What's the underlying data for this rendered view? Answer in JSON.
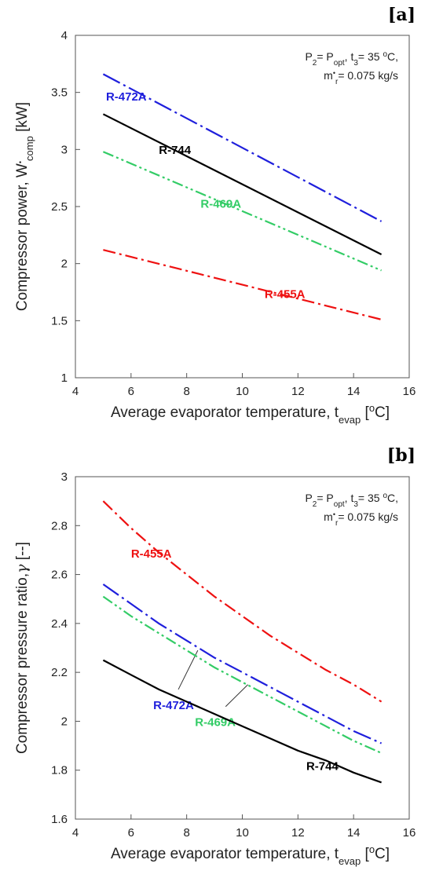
{
  "chart_data": [
    {
      "panel": "[a]",
      "type": "line",
      "xlabel": "Average evaporator temperature, t",
      "xlabel_sub": "evap",
      "xlabel_unit": " [",
      "xlabel_unit_sup": "o",
      "xlabel_unit_end": "C]",
      "ylabel": "Compressor power, W",
      "ylabel_sup": "•",
      "ylabel_sub": "comp",
      "ylabel_end": " [kW]",
      "xlim": [
        4,
        16
      ],
      "ylim": [
        1,
        4
      ],
      "xticks": [
        4,
        6,
        8,
        10,
        12,
        14,
        16
      ],
      "xtick_labels": [
        "4",
        "6",
        "8",
        "10",
        "12",
        "14",
        "16"
      ],
      "yticks": [
        1,
        1.5,
        2,
        2.5,
        3,
        3.5,
        4
      ],
      "ytick_labels": [
        "1",
        "1.5",
        "2",
        "2.5",
        "3",
        "3.5",
        "4"
      ],
      "annotation_line1": [
        "P",
        "2",
        "= P",
        "opt",
        ", t",
        "3",
        "= 35 ",
        "o",
        "C,"
      ],
      "annotation_line2": [
        "m",
        "•",
        "r",
        "= 0.075 kg/s"
      ],
      "series": [
        {
          "name": "R-472A",
          "color": "#1f1fdc",
          "dash": "long-dash-dot",
          "x": [
            5,
            15
          ],
          "y": [
            3.66,
            2.37
          ],
          "label_pos": [
            5.1,
            3.43
          ]
        },
        {
          "name": "R-744",
          "color": "#000000",
          "dash": "solid",
          "x": [
            5,
            15
          ],
          "y": [
            3.31,
            2.08
          ],
          "label_pos": [
            7.0,
            2.96
          ]
        },
        {
          "name": "R-469A",
          "color": "#33cc66",
          "dash": "dash-dot-dot",
          "x": [
            5,
            15
          ],
          "y": [
            2.98,
            1.94
          ],
          "label_pos": [
            8.5,
            2.49
          ]
        },
        {
          "name": "R-455A",
          "color": "#ee1111",
          "dash": "dash-dot",
          "x": [
            5,
            15
          ],
          "y": [
            2.12,
            1.51
          ],
          "label_pos": [
            10.8,
            1.7
          ]
        }
      ]
    },
    {
      "panel": "[b]",
      "type": "line",
      "xlabel": "Average evaporator temperature, t",
      "xlabel_sub": "evap",
      "xlabel_unit": " [",
      "xlabel_unit_sup": "o",
      "xlabel_unit_end": "C]",
      "ylabel": "Compressor pressure ratio,",
      "ylabel_greek": "γ",
      "ylabel_end": " [--]",
      "xlim": [
        4,
        16
      ],
      "ylim": [
        1.6,
        3
      ],
      "xticks": [
        4,
        6,
        8,
        10,
        12,
        14,
        16
      ],
      "xtick_labels": [
        "4",
        "6",
        "8",
        "10",
        "12",
        "14",
        "16"
      ],
      "yticks": [
        1.6,
        1.8,
        2,
        2.2,
        2.4,
        2.6,
        2.8,
        3
      ],
      "ytick_labels": [
        "1.6",
        "1.8",
        "2",
        "2.2",
        "2.4",
        "2.6",
        "2.8",
        "3"
      ],
      "annotation_line1": [
        "P",
        "2",
        "= P",
        "opt",
        ", t",
        "3",
        "= 35 ",
        "o",
        "C,"
      ],
      "annotation_line2": [
        "m",
        "•",
        "r",
        "= 0.075 kg/s"
      ],
      "series": [
        {
          "name": "R-455A",
          "color": "#ee1111",
          "dash": "dash-dot",
          "x": [
            5,
            6,
            7,
            8,
            9,
            10,
            11,
            12,
            13,
            14,
            15
          ],
          "y": [
            2.9,
            2.79,
            2.69,
            2.6,
            2.51,
            2.43,
            2.35,
            2.28,
            2.21,
            2.15,
            2.08
          ],
          "label_pos": [
            6.0,
            2.67
          ]
        },
        {
          "name": "R-472A",
          "color": "#1f1fdc",
          "dash": "long-dash-dot",
          "x": [
            5,
            6,
            7,
            8,
            9,
            10,
            11,
            12,
            13,
            14,
            15
          ],
          "y": [
            2.56,
            2.48,
            2.4,
            2.33,
            2.26,
            2.2,
            2.14,
            2.08,
            2.02,
            1.96,
            1.91
          ],
          "label_pos": [
            6.8,
            2.05
          ],
          "leader": [
            [
              7.7,
              2.13
            ],
            [
              8.4,
              2.29
            ]
          ]
        },
        {
          "name": "R-469A",
          "color": "#33cc66",
          "dash": "dash-dot-dot",
          "x": [
            5,
            6,
            7,
            8,
            9,
            10,
            11,
            12,
            13,
            14,
            15
          ],
          "y": [
            2.51,
            2.43,
            2.36,
            2.29,
            2.22,
            2.16,
            2.1,
            2.04,
            1.98,
            1.92,
            1.87
          ],
          "label_pos": [
            8.3,
            1.98
          ],
          "leader": [
            [
              9.4,
              2.06
            ],
            [
              10.2,
              2.15
            ]
          ]
        },
        {
          "name": "R-744",
          "color": "#000000",
          "dash": "solid",
          "x": [
            5,
            6,
            7,
            8,
            9,
            10,
            11,
            12,
            13,
            14,
            15
          ],
          "y": [
            2.25,
            2.19,
            2.13,
            2.08,
            2.03,
            1.98,
            1.93,
            1.88,
            1.84,
            1.79,
            1.75
          ],
          "label_pos": [
            12.3,
            1.8
          ]
        }
      ]
    }
  ]
}
